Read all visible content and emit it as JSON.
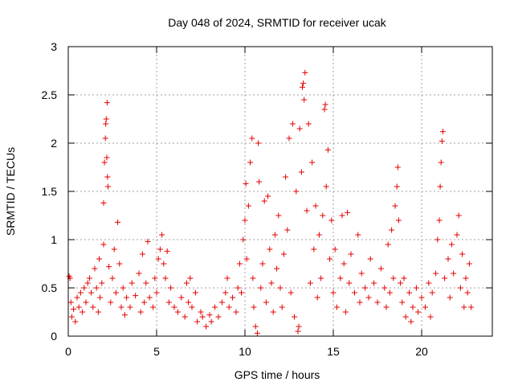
{
  "chart_data": {
    "type": "scatter",
    "title": "Day 048 of 2024, SRMTID for receiver ucak",
    "xlabel": "GPS time / hours",
    "ylabel": "SRMTID / TECUs",
    "xlim": [
      0,
      24
    ],
    "ylim": [
      0,
      3
    ],
    "xticks": [
      {
        "value": 0,
        "label": "0"
      },
      {
        "value": 5,
        "label": "5"
      },
      {
        "value": 10,
        "label": "10"
      },
      {
        "value": 15,
        "label": "15"
      },
      {
        "value": 20,
        "label": "20"
      }
    ],
    "yticks": [
      {
        "value": 0,
        "label": "0"
      },
      {
        "value": 0.5,
        "label": "0.5"
      },
      {
        "value": 1,
        "label": "1"
      },
      {
        "value": 1.5,
        "label": "1.5"
      },
      {
        "value": 2,
        "label": "2"
      },
      {
        "value": 2.5,
        "label": "2.5"
      },
      {
        "value": 3,
        "label": "3"
      }
    ],
    "grid": true,
    "marker": "+",
    "color": "#e60000",
    "series": [
      {
        "name": "SRMTID",
        "points": [
          [
            0.05,
            0.62
          ],
          [
            0.1,
            0.6
          ],
          [
            0.15,
            0.35
          ],
          [
            0.2,
            0.2
          ],
          [
            0.3,
            0.28
          ],
          [
            0.4,
            0.15
          ],
          [
            0.5,
            0.4
          ],
          [
            0.6,
            0.3
          ],
          [
            0.7,
            0.45
          ],
          [
            0.8,
            0.25
          ],
          [
            0.9,
            0.5
          ],
          [
            1.0,
            0.35
          ],
          [
            1.1,
            0.55
          ],
          [
            1.2,
            0.6
          ],
          [
            1.3,
            0.45
          ],
          [
            1.4,
            0.3
          ],
          [
            1.5,
            0.7
          ],
          [
            1.6,
            0.5
          ],
          [
            1.7,
            0.25
          ],
          [
            1.75,
            0.8
          ],
          [
            1.8,
            0.4
          ],
          [
            1.9,
            0.55
          ],
          [
            2.0,
            0.95
          ],
          [
            2.0,
            1.38
          ],
          [
            2.05,
            1.8
          ],
          [
            2.1,
            2.05
          ],
          [
            2.12,
            2.2
          ],
          [
            2.15,
            2.25
          ],
          [
            2.18,
            1.85
          ],
          [
            2.2,
            2.42
          ],
          [
            2.22,
            1.65
          ],
          [
            2.25,
            1.55
          ],
          [
            2.3,
            0.72
          ],
          [
            2.4,
            0.35
          ],
          [
            2.5,
            0.6
          ],
          [
            2.6,
            0.9
          ],
          [
            2.7,
            0.45
          ],
          [
            2.8,
            1.18
          ],
          [
            2.9,
            0.75
          ],
          [
            3.0,
            0.3
          ],
          [
            3.1,
            0.5
          ],
          [
            3.2,
            0.22
          ],
          [
            3.3,
            0.4
          ],
          [
            3.5,
            0.3
          ],
          [
            3.6,
            0.55
          ],
          [
            3.8,
            0.42
          ],
          [
            4.0,
            0.65
          ],
          [
            4.1,
            0.25
          ],
          [
            4.2,
            0.85
          ],
          [
            4.3,
            0.35
          ],
          [
            4.4,
            0.55
          ],
          [
            4.5,
            0.98
          ],
          [
            4.6,
            0.4
          ],
          [
            4.8,
            0.3
          ],
          [
            4.9,
            0.6
          ],
          [
            5.0,
            0.45
          ],
          [
            5.1,
            0.8
          ],
          [
            5.2,
            0.9
          ],
          [
            5.3,
            1.05
          ],
          [
            5.4,
            0.75
          ],
          [
            5.5,
            0.6
          ],
          [
            5.6,
            0.88
          ],
          [
            5.7,
            0.35
          ],
          [
            5.8,
            0.5
          ],
          [
            6.0,
            0.3
          ],
          [
            6.2,
            0.25
          ],
          [
            6.4,
            0.4
          ],
          [
            6.6,
            0.2
          ],
          [
            6.7,
            0.55
          ],
          [
            6.8,
            0.35
          ],
          [
            6.9,
            0.6
          ],
          [
            7.0,
            0.3
          ],
          [
            7.2,
            0.45
          ],
          [
            7.3,
            0.15
          ],
          [
            7.5,
            0.25
          ],
          [
            7.6,
            0.2
          ],
          [
            7.8,
            0.1
          ],
          [
            8.0,
            0.22
          ],
          [
            8.1,
            0.15
          ],
          [
            8.3,
            0.3
          ],
          [
            8.5,
            0.2
          ],
          [
            8.7,
            0.35
          ],
          [
            8.9,
            0.45
          ],
          [
            9.0,
            0.6
          ],
          [
            9.1,
            0.3
          ],
          [
            9.3,
            0.4
          ],
          [
            9.5,
            0.25
          ],
          [
            9.6,
            0.5
          ],
          [
            9.7,
            0.75
          ],
          [
            9.8,
            0.45
          ],
          [
            9.9,
            1.0
          ],
          [
            10.0,
            1.2
          ],
          [
            10.05,
            1.58
          ],
          [
            10.1,
            0.8
          ],
          [
            10.2,
            1.35
          ],
          [
            10.3,
            1.8
          ],
          [
            10.4,
            2.05
          ],
          [
            10.45,
            0.6
          ],
          [
            10.5,
            0.3
          ],
          [
            10.6,
            0.1
          ],
          [
            10.7,
            0.03
          ],
          [
            10.75,
            2.0
          ],
          [
            10.8,
            1.6
          ],
          [
            10.9,
            0.5
          ],
          [
            11.0,
            0.75
          ],
          [
            11.1,
            1.4
          ],
          [
            11.2,
            0.35
          ],
          [
            11.3,
            1.45
          ],
          [
            11.4,
            0.9
          ],
          [
            11.5,
            0.55
          ],
          [
            11.6,
            0.25
          ],
          [
            11.7,
            1.05
          ],
          [
            11.8,
            0.7
          ],
          [
            11.9,
            1.25
          ],
          [
            12.0,
            0.5
          ],
          [
            12.1,
            0.3
          ],
          [
            12.2,
            0.85
          ],
          [
            12.3,
            1.65
          ],
          [
            12.4,
            1.1
          ],
          [
            12.5,
            2.05
          ],
          [
            12.6,
            0.45
          ],
          [
            12.7,
            2.2
          ],
          [
            12.8,
            0.2
          ],
          [
            12.9,
            1.5
          ],
          [
            13.0,
            0.05
          ],
          [
            13.05,
            0.1
          ],
          [
            13.1,
            2.15
          ],
          [
            13.2,
            1.7
          ],
          [
            13.25,
            2.58
          ],
          [
            13.3,
            2.62
          ],
          [
            13.35,
            2.45
          ],
          [
            13.4,
            2.73
          ],
          [
            13.5,
            1.3
          ],
          [
            13.6,
            2.2
          ],
          [
            13.7,
            0.55
          ],
          [
            13.8,
            1.8
          ],
          [
            13.9,
            0.9
          ],
          [
            14.0,
            1.35
          ],
          [
            14.1,
            0.4
          ],
          [
            14.2,
            1.05
          ],
          [
            14.3,
            0.6
          ],
          [
            14.4,
            1.25
          ],
          [
            14.5,
            2.35
          ],
          [
            14.55,
            2.4
          ],
          [
            14.6,
            1.55
          ],
          [
            14.7,
            1.93
          ],
          [
            14.8,
            0.8
          ],
          [
            14.9,
            1.2
          ],
          [
            15.0,
            0.45
          ],
          [
            15.1,
            0.9
          ],
          [
            15.2,
            0.3
          ],
          [
            15.4,
            0.6
          ],
          [
            15.5,
            1.25
          ],
          [
            15.6,
            0.75
          ],
          [
            15.7,
            0.25
          ],
          [
            15.8,
            1.28
          ],
          [
            15.9,
            0.55
          ],
          [
            16.0,
            0.85
          ],
          [
            16.2,
            0.45
          ],
          [
            16.4,
            1.05
          ],
          [
            16.5,
            0.35
          ],
          [
            16.6,
            0.65
          ],
          [
            16.8,
            0.5
          ],
          [
            17.0,
            0.4
          ],
          [
            17.1,
            0.8
          ],
          [
            17.3,
            0.55
          ],
          [
            17.5,
            0.35
          ],
          [
            17.7,
            0.7
          ],
          [
            17.9,
            0.5
          ],
          [
            18.0,
            0.3
          ],
          [
            18.1,
            0.95
          ],
          [
            18.2,
            0.45
          ],
          [
            18.3,
            1.1
          ],
          [
            18.4,
            0.6
          ],
          [
            18.5,
            1.35
          ],
          [
            18.6,
            1.55
          ],
          [
            18.65,
            1.75
          ],
          [
            18.7,
            1.2
          ],
          [
            18.8,
            0.55
          ],
          [
            18.9,
            0.35
          ],
          [
            19.0,
            0.6
          ],
          [
            19.1,
            0.2
          ],
          [
            19.3,
            0.45
          ],
          [
            19.4,
            0.15
          ],
          [
            19.5,
            0.3
          ],
          [
            19.7,
            0.5
          ],
          [
            19.8,
            0.25
          ],
          [
            20.0,
            0.4
          ],
          [
            20.2,
            0.3
          ],
          [
            20.4,
            0.55
          ],
          [
            20.5,
            0.2
          ],
          [
            20.6,
            0.45
          ],
          [
            20.8,
            0.65
          ],
          [
            20.9,
            1.0
          ],
          [
            21.0,
            1.2
          ],
          [
            21.05,
            1.55
          ],
          [
            21.1,
            1.8
          ],
          [
            21.15,
            2.02
          ],
          [
            21.2,
            2.12
          ],
          [
            21.3,
            0.6
          ],
          [
            21.5,
            0.8
          ],
          [
            21.6,
            0.4
          ],
          [
            21.7,
            0.95
          ],
          [
            21.8,
            0.65
          ],
          [
            22.0,
            1.05
          ],
          [
            22.1,
            1.25
          ],
          [
            22.2,
            0.5
          ],
          [
            22.3,
            0.85
          ],
          [
            22.4,
            0.3
          ],
          [
            22.5,
            0.6
          ],
          [
            22.6,
            0.45
          ],
          [
            22.7,
            0.75
          ],
          [
            22.8,
            0.3
          ]
        ]
      }
    ]
  }
}
